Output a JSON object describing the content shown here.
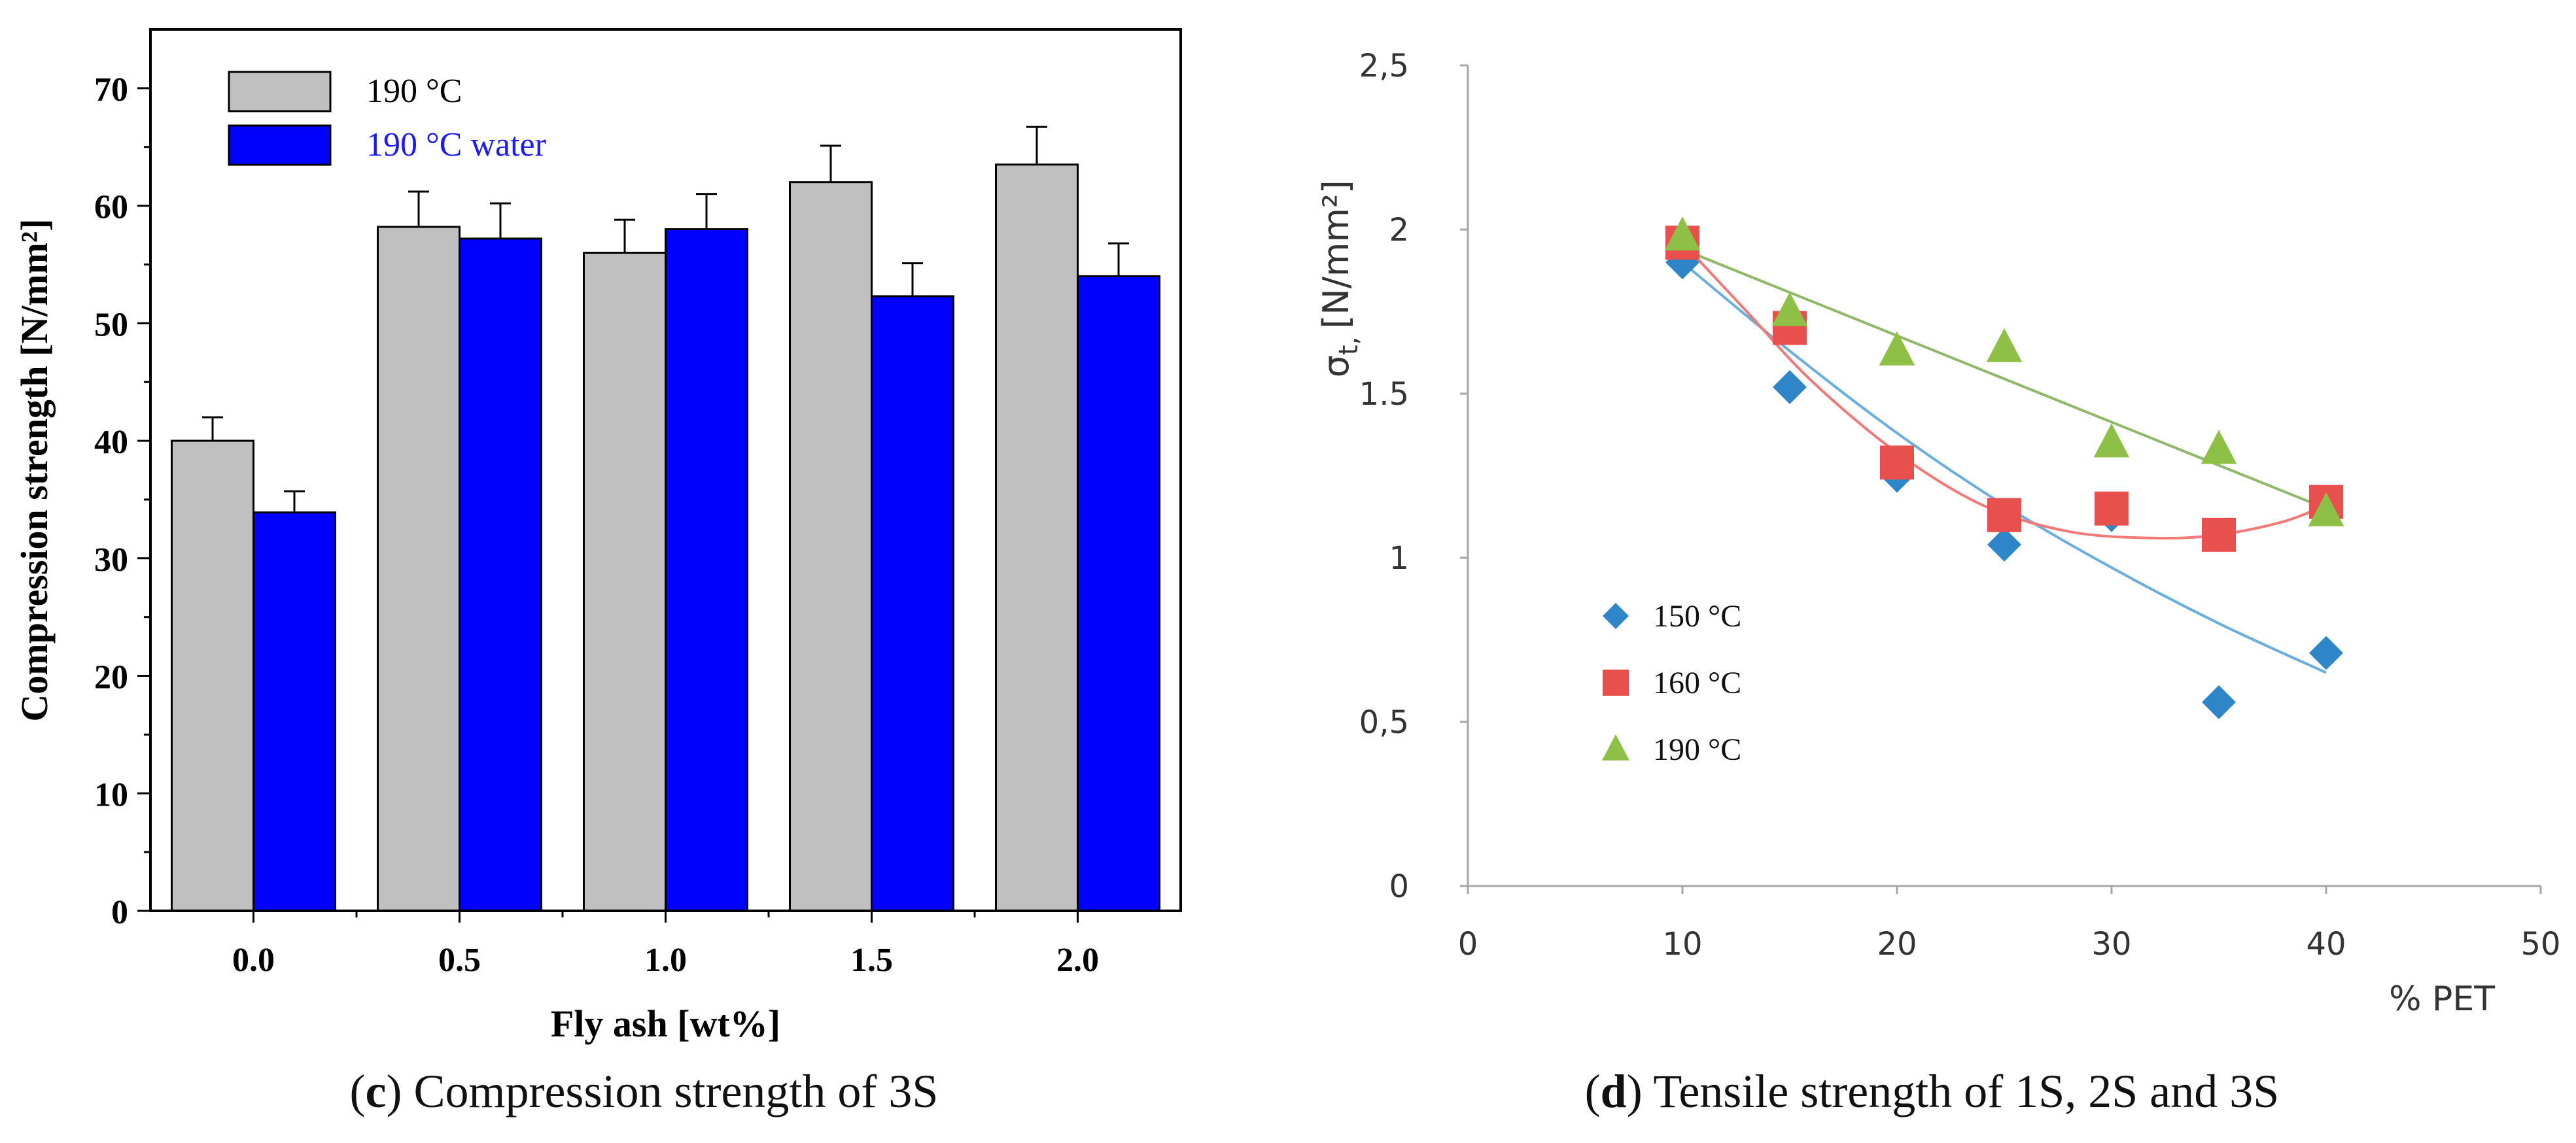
{
  "panel_c": {
    "caption_letter": "c",
    "caption_text": "Compression strength of 3S"
  },
  "panel_d": {
    "caption_letter": "d",
    "caption_text": "Tensile strength of 1S, 2S and 3S"
  },
  "colors": {
    "gray_bar": "#c0c0c0",
    "blue_bar": "#0000ff",
    "legend_blue_text": "#1a1aff",
    "series_150": "#2e86c8",
    "series_160": "#e8504e",
    "series_190": "#8ec048",
    "fit_150": "#6aaee0",
    "fit_160": "#f07a78",
    "fit_190": "#8fb86a",
    "axis_gray": "#a6a6a6"
  },
  "chart_data": [
    {
      "type": "bar",
      "title": "",
      "xlabel": "Fly ash [wt%]",
      "ylabel": "Compression strength [N/mm²]",
      "categories": [
        "0.0",
        "0.5",
        "1.0",
        "1.5",
        "2.0"
      ],
      "ylim": [
        0,
        75
      ],
      "yticks": [
        "0",
        "10",
        "20",
        "30",
        "40",
        "50",
        "60",
        "70"
      ],
      "series": [
        {
          "name": "190 °C",
          "values": [
            40,
            58.2,
            56,
            62,
            63.5
          ],
          "errors": [
            2,
            3,
            2.8,
            3.1,
            3.2
          ]
        },
        {
          "name": "190 °C water",
          "values": [
            33.9,
            57.2,
            58,
            52.3,
            54
          ],
          "errors": [
            1.8,
            3,
            3,
            2.8,
            2.8
          ]
        }
      ],
      "legend": "top-left"
    },
    {
      "type": "scatter",
      "title": "",
      "xlabel": "% PET",
      "ylabel": "σ",
      "ylabel_sub": "t,",
      "ylabel_unit": "[N/mm²]",
      "xlim": [
        0,
        50
      ],
      "ylim": [
        0,
        2.5
      ],
      "xticks": [
        "0",
        "10",
        "20",
        "30",
        "40",
        "50"
      ],
      "yticks": [
        "0",
        "0,5",
        "1",
        "1.5",
        "2",
        "2,5"
      ],
      "series": [
        {
          "name": "150 °C",
          "marker": "diamond",
          "x": [
            10,
            15,
            20,
            25,
            30,
            35,
            40
          ],
          "y": [
            1.9,
            1.52,
            1.25,
            1.04,
            1.13,
            0.56,
            0.71
          ],
          "fit": [
            [
              10,
              1.9
            ],
            [
              15,
              1.63
            ],
            [
              20,
              1.38
            ],
            [
              25,
              1.16
            ],
            [
              30,
              0.97
            ],
            [
              35,
              0.8
            ],
            [
              40,
              0.65
            ]
          ]
        },
        {
          "name": "160 °C",
          "marker": "square",
          "x": [
            10,
            15,
            20,
            25,
            30,
            35,
            40
          ],
          "y": [
            1.96,
            1.7,
            1.29,
            1.13,
            1.15,
            1.07,
            1.17
          ],
          "fit": [
            [
              10,
              1.96
            ],
            [
              13,
              1.75
            ],
            [
              16,
              1.54
            ],
            [
              20,
              1.32
            ],
            [
              24,
              1.16
            ],
            [
              28,
              1.08
            ],
            [
              32,
              1.06
            ],
            [
              35,
              1.07
            ],
            [
              38,
              1.11
            ],
            [
              40,
              1.16
            ]
          ]
        },
        {
          "name": "190 °C",
          "marker": "triangle",
          "x": [
            10,
            15,
            20,
            25,
            30,
            35,
            40
          ],
          "y": [
            1.98,
            1.75,
            1.63,
            1.64,
            1.35,
            1.33,
            1.14
          ],
          "fit": [
            [
              10,
              1.94
            ],
            [
              40,
              1.15
            ]
          ]
        }
      ],
      "legend": "bottom-left"
    }
  ]
}
